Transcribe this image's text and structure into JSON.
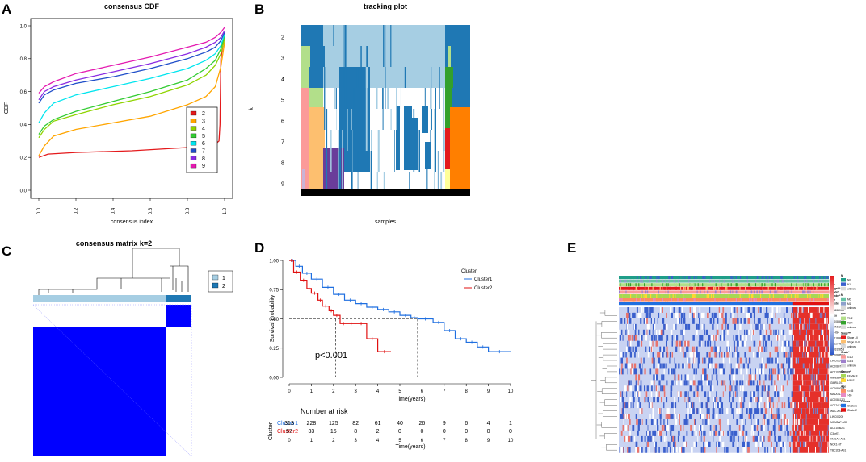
{
  "panels": {
    "A": "A",
    "B": "B",
    "C": "C",
    "D": "D",
    "E": "E"
  },
  "chart_data": [
    {
      "panel": "A",
      "type": "line",
      "title": "consensus CDF",
      "xlabel": "consensus index",
      "ylabel": "CDF",
      "xlim": [
        0,
        1
      ],
      "ylim": [
        0,
        1
      ],
      "xticks": [
        "0.0",
        "0.2",
        "0.4",
        "0.6",
        "0.8",
        "1.0"
      ],
      "yticks": [
        "0.0",
        "0.2",
        "0.4",
        "0.6",
        "0.8",
        "1.0"
      ],
      "legend": "bottom-right",
      "series": [
        {
          "name": "2",
          "color": "#e41a1c",
          "x": [
            0,
            0.05,
            0.2,
            0.5,
            0.8,
            0.95,
            0.97,
            0.975,
            0.98,
            1.0
          ],
          "y": [
            0.2,
            0.22,
            0.23,
            0.24,
            0.26,
            0.28,
            0.3,
            0.4,
            0.8,
            0.95
          ]
        },
        {
          "name": "3",
          "color": "#ffa500",
          "x": [
            0,
            0.03,
            0.08,
            0.2,
            0.4,
            0.6,
            0.8,
            0.9,
            0.95,
            0.98,
            1.0
          ],
          "y": [
            0.21,
            0.27,
            0.33,
            0.37,
            0.41,
            0.45,
            0.52,
            0.57,
            0.63,
            0.75,
            0.9
          ]
        },
        {
          "name": "4",
          "color": "#8fd400",
          "x": [
            0,
            0.03,
            0.08,
            0.2,
            0.4,
            0.6,
            0.8,
            0.9,
            0.95,
            0.98,
            1.0
          ],
          "y": [
            0.32,
            0.37,
            0.42,
            0.46,
            0.52,
            0.57,
            0.64,
            0.7,
            0.76,
            0.83,
            0.92
          ]
        },
        {
          "name": "5",
          "color": "#33cc33",
          "x": [
            0,
            0.03,
            0.08,
            0.2,
            0.4,
            0.6,
            0.8,
            0.9,
            0.95,
            0.98,
            1.0
          ],
          "y": [
            0.34,
            0.39,
            0.43,
            0.48,
            0.54,
            0.6,
            0.67,
            0.74,
            0.79,
            0.86,
            0.94
          ]
        },
        {
          "name": "6",
          "color": "#00e5ee",
          "x": [
            0,
            0.03,
            0.08,
            0.2,
            0.4,
            0.6,
            0.8,
            0.9,
            0.95,
            0.98,
            1.0
          ],
          "y": [
            0.41,
            0.47,
            0.53,
            0.58,
            0.63,
            0.68,
            0.74,
            0.79,
            0.83,
            0.88,
            0.95
          ]
        },
        {
          "name": "7",
          "color": "#1f4ec9",
          "x": [
            0,
            0.03,
            0.08,
            0.2,
            0.4,
            0.6,
            0.8,
            0.9,
            0.95,
            0.98,
            1.0
          ],
          "y": [
            0.53,
            0.58,
            0.61,
            0.65,
            0.69,
            0.74,
            0.8,
            0.84,
            0.87,
            0.91,
            0.96
          ]
        },
        {
          "name": "8",
          "color": "#8a2be2",
          "x": [
            0,
            0.03,
            0.08,
            0.2,
            0.4,
            0.6,
            0.8,
            0.9,
            0.95,
            0.98,
            1.0
          ],
          "y": [
            0.55,
            0.6,
            0.63,
            0.67,
            0.72,
            0.77,
            0.83,
            0.87,
            0.9,
            0.93,
            0.97
          ]
        },
        {
          "name": "9",
          "color": "#e41ab0",
          "x": [
            0,
            0.03,
            0.08,
            0.2,
            0.4,
            0.6,
            0.8,
            0.9,
            0.95,
            0.98,
            1.0
          ],
          "y": [
            0.59,
            0.63,
            0.66,
            0.71,
            0.76,
            0.81,
            0.87,
            0.9,
            0.93,
            0.96,
            0.99
          ]
        }
      ]
    },
    {
      "panel": "B",
      "type": "heatmap",
      "title": "tracking plot",
      "xlabel": "samples",
      "ylabel": "k",
      "rows": [
        "2",
        "3",
        "4",
        "5",
        "6",
        "7",
        "8",
        "9"
      ]
    },
    {
      "panel": "C",
      "type": "heatmap",
      "title": "consensus matrix k=2",
      "legend": [
        "1",
        "2"
      ],
      "legend_colors": [
        "#a6cee3",
        "#1f78b4"
      ],
      "cluster_sizes": [
        313,
        57
      ]
    },
    {
      "panel": "D",
      "type": "line",
      "title": "",
      "xlabel": "Time(years)",
      "ylabel": "Survival probability",
      "xlim": [
        0,
        10
      ],
      "ylim": [
        0,
        1
      ],
      "xticks": [
        "0",
        "1",
        "2",
        "3",
        "4",
        "5",
        "6",
        "7",
        "8",
        "9",
        "10"
      ],
      "yticks": [
        "0.00",
        "0.25",
        "0.50",
        "0.75",
        "1.00"
      ],
      "legend_title": "Cluster",
      "pvalue": "p<0.001",
      "median_survival": [
        5.8,
        2.1
      ],
      "series": [
        {
          "name": "Cluster1",
          "color": "#1f6fe0",
          "x": [
            0,
            0.3,
            0.6,
            1.0,
            1.5,
            2.0,
            2.5,
            3.0,
            3.5,
            4.0,
            4.5,
            5.0,
            5.5,
            5.8,
            6.5,
            7.0,
            7.5,
            8.0,
            8.5,
            9.0,
            10.0
          ],
          "y": [
            1.0,
            0.95,
            0.89,
            0.84,
            0.77,
            0.71,
            0.66,
            0.63,
            0.6,
            0.58,
            0.56,
            0.53,
            0.51,
            0.5,
            0.47,
            0.4,
            0.33,
            0.3,
            0.26,
            0.22,
            0.22
          ]
        },
        {
          "name": "Cluster2",
          "color": "#e01010",
          "x": [
            0,
            0.2,
            0.5,
            0.8,
            1.0,
            1.3,
            1.5,
            1.8,
            2.0,
            2.3,
            2.6,
            3.0,
            3.5,
            4.0,
            4.6
          ],
          "y": [
            1.0,
            0.9,
            0.83,
            0.76,
            0.72,
            0.66,
            0.61,
            0.57,
            0.53,
            0.46,
            0.46,
            0.46,
            0.33,
            0.22,
            0.22
          ]
        }
      ],
      "risk_table": {
        "title": "Number at risk",
        "ylabel": "Cluster",
        "xlabel": "Time(years)",
        "times": [
          "0",
          "1",
          "2",
          "3",
          "4",
          "5",
          "6",
          "7",
          "8",
          "9",
          "10"
        ],
        "rows": [
          {
            "name": "Cluster1",
            "counts": [
              "313",
              "228",
              "125",
              "82",
              "61",
              "40",
              "26",
              "9",
              "6",
              "4",
              "1"
            ]
          },
          {
            "name": "Cluster2",
            "counts": [
              "57",
              "33",
              "15",
              "8",
              "2",
              "0",
              "0",
              "0",
              "0",
              "0",
              "0"
            ]
          }
        ]
      }
    },
    {
      "panel": "E",
      "type": "heatmap",
      "annotation_tracks": [
        "N",
        "M",
        "T***",
        "Stage***",
        "Grade*",
        "Gender*",
        "Age",
        "Cluster"
      ],
      "genes": [
        "AL365203.2",
        "MIRH",
        "AC008556.1",
        "AL442125.2",
        "SNHG4",
        "AC018690.1",
        "AC027097.1",
        "AL031985.3",
        "AC068050.4",
        "LINC01094",
        "AC008479.2",
        "AC010789.1",
        "MIDEB-AS1",
        "GIHRLOS",
        "AC068404.1",
        "MALAT1-AS",
        "AC008412.3",
        "AC074117.1",
        "WAC-AS1",
        "LINC00205",
        "MCM3AP-AS1",
        "AC010862.1",
        "C3orf74",
        "HMGA3-AS1",
        "NCK1-DT",
        "TBC1D8-AS1"
      ],
      "legend_groups": [
        {
          "title": "N",
          "items": [
            "N0",
            "N1",
            "unknow"
          ]
        },
        {
          "title": "M",
          "items": [
            "M0",
            "M1",
            "unknow"
          ]
        },
        {
          "title": "T***",
          "items": [
            "T1-2",
            "T3-4",
            "unknow"
          ]
        },
        {
          "title": "Stage***",
          "items": [
            "Stage I-II",
            "Stage III-IV",
            "unknow"
          ]
        },
        {
          "title": "Grade*",
          "items": [
            "G1-2",
            "G3-4",
            "unknow"
          ]
        },
        {
          "title": "Gender*",
          "items": [
            "FEMALE",
            "MALE"
          ]
        },
        {
          "title": "Age",
          "items": [
            "<=65",
            ">65"
          ]
        },
        {
          "title": "Cluster",
          "items": [
            "Cluster1",
            "Cluster2"
          ]
        }
      ]
    }
  ]
}
